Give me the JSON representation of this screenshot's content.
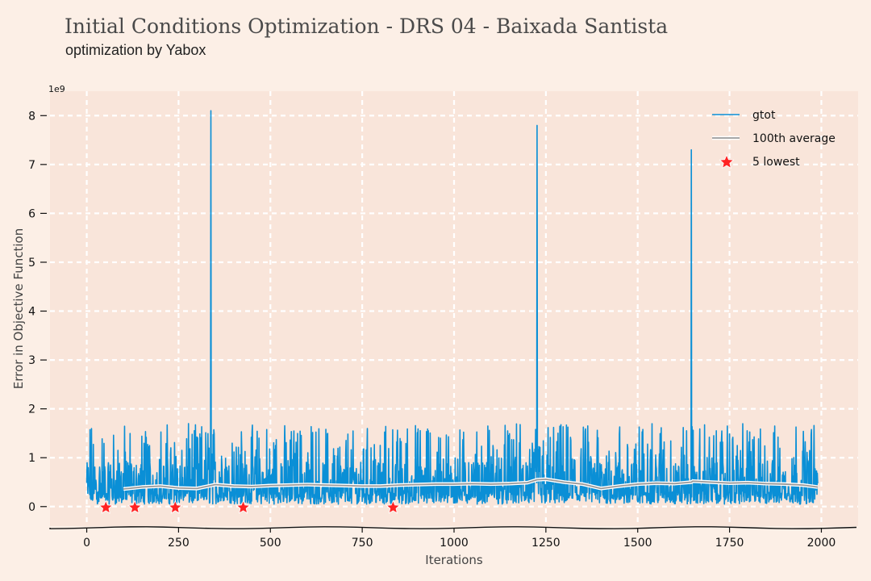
{
  "header": {
    "title": "Initial Conditions Optimization - DRS 04 - Baixada Santista",
    "subtitle": "optimization by Yabox"
  },
  "chart_data": {
    "type": "line",
    "xlabel": "Iterations",
    "ylabel": "Error in Objective Function",
    "y_scale_label": "1e9",
    "xlim": [
      -100,
      2100
    ],
    "ylim": [
      -0.4,
      8.5
    ],
    "x_ticks": [
      0,
      250,
      500,
      750,
      1000,
      1250,
      1500,
      1750,
      2000
    ],
    "x_tick_labels": [
      "0",
      "250",
      "500",
      "750",
      "1000",
      "1250",
      "1500",
      "1750",
      "2000"
    ],
    "y_ticks": [
      0,
      1,
      2,
      3,
      4,
      5,
      6,
      7,
      8
    ],
    "y_tick_labels": [
      "0",
      "1",
      "2",
      "3",
      "4",
      "5",
      "6",
      "7",
      "8"
    ],
    "grid": true,
    "legend_position": "top-right",
    "series": [
      {
        "name": "gtot",
        "color": "#0a8fd6",
        "kind": "line",
        "x_range": [
          0,
          1990
        ],
        "typical_range": [
          0.05,
          1.7
        ],
        "spikes": [
          {
            "x": 338,
            "y": 8.1
          },
          {
            "x": 1226,
            "y": 7.8
          },
          {
            "x": 1646,
            "y": 7.3
          }
        ]
      },
      {
        "name": "100th average",
        "color": "#9a9a9a",
        "kind": "line",
        "x": [
          100,
          150,
          200,
          250,
          300,
          338,
          350,
          400,
          450,
          500,
          550,
          600,
          650,
          700,
          750,
          800,
          850,
          900,
          950,
          1000,
          1050,
          1100,
          1150,
          1200,
          1226,
          1250,
          1300,
          1350,
          1400,
          1450,
          1500,
          1550,
          1600,
          1646,
          1650,
          1700,
          1750,
          1800,
          1850,
          1900,
          1950,
          1990
        ],
        "values": [
          0.36,
          0.4,
          0.42,
          0.38,
          0.37,
          0.43,
          0.45,
          0.42,
          0.41,
          0.43,
          0.44,
          0.45,
          0.44,
          0.43,
          0.42,
          0.42,
          0.44,
          0.45,
          0.46,
          0.46,
          0.47,
          0.46,
          0.47,
          0.49,
          0.55,
          0.56,
          0.5,
          0.46,
          0.37,
          0.42,
          0.46,
          0.48,
          0.47,
          0.5,
          0.52,
          0.5,
          0.48,
          0.49,
          0.47,
          0.46,
          0.44,
          0.4
        ]
      },
      {
        "name": "5 lowest",
        "color": "#ff2222",
        "kind": "scatter",
        "marker": "star",
        "x": [
          52,
          131,
          241,
          426,
          834
        ],
        "values": [
          -0.02,
          -0.02,
          -0.02,
          -0.02,
          -0.02
        ]
      }
    ]
  }
}
